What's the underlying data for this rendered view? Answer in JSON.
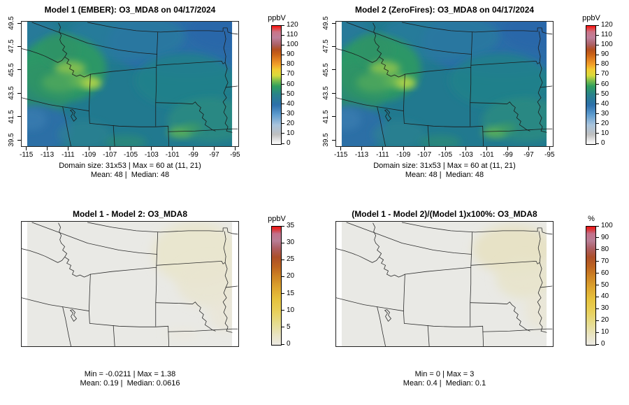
{
  "figure": {
    "description": "Four-panel model comparison of O3_MDA8 maps",
    "background_color": "#ffffff"
  },
  "panels": [
    {
      "title": "Model 1 (EMBER): O3_MDA8 on 04/17/2024",
      "caption1": "Domain size: 31x53 | Max = 60 at (11, 21)",
      "caption2": "Mean: 48 |  Median: 48",
      "has_axes": true,
      "map_style": "concentration",
      "colorbar": {
        "label": "ppbV",
        "ticks": [
          "0",
          "10",
          "20",
          "30",
          "40",
          "50",
          "60",
          "70",
          "80",
          "90",
          "100",
          "110",
          "120"
        ],
        "palette": "concentration"
      }
    },
    {
      "title": "Model 2 (ZeroFires): O3_MDA8 on 04/17/2024",
      "caption1": "Domain size: 31x53 | Max = 60 at (11, 21)",
      "caption2": "Mean: 48 |  Median: 48",
      "has_axes": true,
      "map_style": "concentration",
      "colorbar": {
        "label": "ppbV",
        "ticks": [
          "0",
          "10",
          "20",
          "30",
          "40",
          "50",
          "60",
          "70",
          "80",
          "90",
          "100",
          "110",
          "120"
        ],
        "palette": "concentration"
      }
    },
    {
      "title": "Model 1 - Model 2: O3_MDA8",
      "caption1": "Min = -0.0211 | Max = 1.38",
      "caption2": "Mean: 0.19 |  Median: 0.0616",
      "has_axes": false,
      "map_style": "difference",
      "colorbar": {
        "label": "ppbV",
        "ticks": [
          "0",
          "5",
          "10",
          "15",
          "20",
          "25",
          "30",
          "35"
        ],
        "palette": "difference"
      }
    },
    {
      "title": "(Model 1 - Model 2)/(Model 1)x100%: O3_MDA8",
      "caption1": "Min = 0 | Max = 3",
      "caption2": "Mean: 0.4 |  Median: 0.1",
      "has_axes": false,
      "map_style": "percent",
      "colorbar": {
        "label": "%",
        "ticks": [
          "0",
          "10",
          "20",
          "30",
          "40",
          "50",
          "60",
          "70",
          "80",
          "90",
          "100"
        ],
        "palette": "difference"
      }
    }
  ],
  "axes": {
    "x_ticks": [
      "-115",
      "-113",
      "-111",
      "-109",
      "-107",
      "-105",
      "-103",
      "-101",
      "-99",
      "-97",
      "-95"
    ],
    "y_ticks": [
      "39.5",
      "41.5",
      "43.5",
      "45.5",
      "47.5",
      "49.5"
    ]
  },
  "palettes": {
    "concentration": [
      [
        "0%",
        "#ffffff"
      ],
      [
        "8%",
        "#bfbfbf"
      ],
      [
        "16%",
        "#a9c4dc"
      ],
      [
        "25%",
        "#5d9bce"
      ],
      [
        "33%",
        "#2d70ab"
      ],
      [
        "42%",
        "#29828b"
      ],
      [
        "49%",
        "#2f9e5e"
      ],
      [
        "54%",
        "#83c04a"
      ],
      [
        "58%",
        "#d9da3c"
      ],
      [
        "63%",
        "#f2cc32"
      ],
      [
        "67%",
        "#f3a229"
      ],
      [
        "72%",
        "#df7d20"
      ],
      [
        "76%",
        "#c96117"
      ],
      [
        "80%",
        "#b34f20"
      ],
      [
        "84%",
        "#ab5f63"
      ],
      [
        "90%",
        "#bd7f9b"
      ],
      [
        "95%",
        "#cb7487"
      ],
      [
        "98%",
        "#e63b3b"
      ],
      [
        "100%",
        "#fb0d0d"
      ]
    ],
    "difference": [
      [
        "0%",
        "#eceae4"
      ],
      [
        "8%",
        "#e9e4c4"
      ],
      [
        "18%",
        "#e6dc8e"
      ],
      [
        "28%",
        "#e8d05b"
      ],
      [
        "38%",
        "#e6c33e"
      ],
      [
        "48%",
        "#dda62f"
      ],
      [
        "58%",
        "#cd8324"
      ],
      [
        "66%",
        "#bd6420"
      ],
      [
        "74%",
        "#ac4f28"
      ],
      [
        "82%",
        "#ad5f66"
      ],
      [
        "88%",
        "#b87e95"
      ],
      [
        "94%",
        "#c2708b"
      ],
      [
        "97%",
        "#d63f44"
      ],
      [
        "100%",
        "#f21111"
      ]
    ]
  },
  "chart_data": [
    {
      "type": "heatmap",
      "title": "Model 1 (EMBER): O3_MDA8 on 04/17/2024",
      "variable": "O3_MDA8",
      "units": "ppbV",
      "date": "04/17/2024",
      "domain_size": "31x53",
      "max": 60,
      "max_location": "(11, 21)",
      "mean": 48,
      "median": 48,
      "colorbar_range": [
        0,
        120
      ],
      "colorbar_tick_step": 10,
      "x_axis": {
        "ticks": [
          -115,
          -113,
          -111,
          -109,
          -107,
          -105,
          -103,
          -101,
          -99,
          -97,
          -95
        ]
      },
      "y_axis": {
        "ticks": [
          39.5,
          41.5,
          43.5,
          45.5,
          47.5,
          49.5
        ]
      },
      "legend_position": "right"
    },
    {
      "type": "heatmap",
      "title": "Model 2 (ZeroFires): O3_MDA8 on 04/17/2024",
      "variable": "O3_MDA8",
      "units": "ppbV",
      "date": "04/17/2024",
      "domain_size": "31x53",
      "max": 60,
      "max_location": "(11, 21)",
      "mean": 48,
      "median": 48,
      "colorbar_range": [
        0,
        120
      ],
      "colorbar_tick_step": 10,
      "x_axis": {
        "ticks": [
          -115,
          -113,
          -111,
          -109,
          -107,
          -105,
          -103,
          -101,
          -99,
          -97,
          -95
        ]
      },
      "y_axis": {
        "ticks": [
          39.5,
          41.5,
          43.5,
          45.5,
          47.5,
          49.5
        ]
      },
      "legend_position": "right"
    },
    {
      "type": "heatmap",
      "title": "Model 1 - Model 2: O3_MDA8",
      "variable": "O3_MDA8",
      "units": "ppbV",
      "min": -0.0211,
      "max": 1.38,
      "mean": 0.19,
      "median": 0.0616,
      "colorbar_range": [
        0,
        35
      ],
      "colorbar_tick_step": 5,
      "legend_position": "right"
    },
    {
      "type": "heatmap",
      "title": "(Model 1 - Model 2)/(Model 1)x100%: O3_MDA8",
      "variable": "O3_MDA8",
      "units": "%",
      "min": 0,
      "max": 3,
      "mean": 0.4,
      "median": 0.1,
      "colorbar_range": [
        0,
        100
      ],
      "colorbar_tick_step": 10,
      "legend_position": "right"
    }
  ]
}
